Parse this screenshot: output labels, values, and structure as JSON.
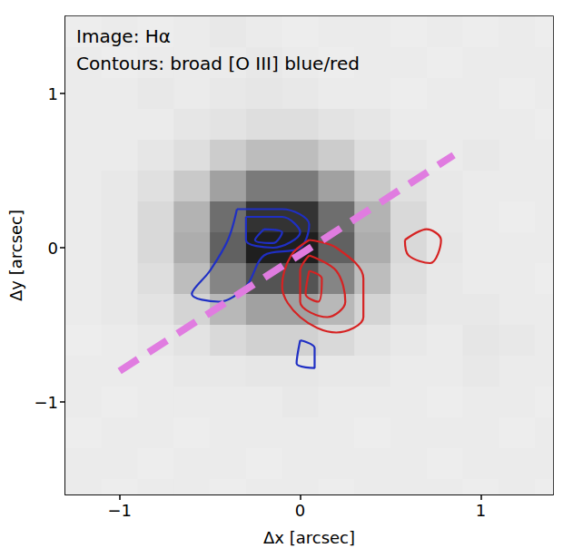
{
  "chart_data": {
    "type": "image",
    "annotations": [
      "Image: Hα",
      "Contours: broad [O III] blue/red"
    ],
    "x_label": "Δx [arcsec]",
    "y_label": "Δy [arcsec]",
    "xlim": [
      -1.3,
      1.4
    ],
    "ylim": [
      -1.6,
      1.5
    ],
    "xticks": [
      {
        "value": -1,
        "label": "−1"
      },
      0,
      1
    ],
    "yticks": [
      {
        "value": -1,
        "label": "−1"
      },
      0,
      1
    ],
    "grid": false,
    "tick_labels": true,
    "image": {
      "x": [
        -1.2,
        -1.0,
        -0.8,
        -0.6,
        -0.4,
        -0.2,
        0.0,
        0.2,
        0.4,
        0.6,
        0.8,
        1.0,
        1.2,
        1.4
      ],
      "y": [
        1.4,
        1.2,
        1.0,
        0.8,
        0.6,
        0.4,
        0.2,
        0.0,
        -0.2,
        -0.4,
        -0.6,
        -0.8,
        -1.0,
        -1.2,
        -1.4,
        -1.6
      ],
      "values": [
        [
          0.07,
          0.08,
          0.07,
          0.08,
          0.09,
          0.08,
          0.07,
          0.08,
          0.08,
          0.07,
          0.08,
          0.07,
          0.08,
          0.07
        ],
        [
          0.08,
          0.07,
          0.08,
          0.08,
          0.08,
          0.09,
          0.08,
          0.07,
          0.08,
          0.08,
          0.07,
          0.08,
          0.08,
          0.08
        ],
        [
          0.08,
          0.08,
          0.09,
          0.08,
          0.09,
          0.1,
          0.09,
          0.08,
          0.08,
          0.07,
          0.08,
          0.08,
          0.07,
          0.08
        ],
        [
          0.08,
          0.08,
          0.08,
          0.1,
          0.11,
          0.13,
          0.13,
          0.11,
          0.1,
          0.08,
          0.08,
          0.08,
          0.08,
          0.07
        ],
        [
          0.08,
          0.08,
          0.1,
          0.13,
          0.2,
          0.26,
          0.26,
          0.2,
          0.13,
          0.1,
          0.08,
          0.09,
          0.08,
          0.08
        ],
        [
          0.08,
          0.09,
          0.12,
          0.21,
          0.37,
          0.52,
          0.52,
          0.37,
          0.21,
          0.12,
          0.09,
          0.08,
          0.08,
          0.08
        ],
        [
          0.08,
          0.09,
          0.15,
          0.3,
          0.57,
          0.8,
          0.8,
          0.57,
          0.3,
          0.15,
          0.09,
          0.08,
          0.07,
          0.08
        ],
        [
          0.08,
          0.09,
          0.15,
          0.32,
          0.62,
          0.88,
          0.88,
          0.62,
          0.32,
          0.15,
          0.1,
          0.08,
          0.08,
          0.08
        ],
        [
          0.08,
          0.09,
          0.13,
          0.26,
          0.48,
          0.67,
          0.67,
          0.48,
          0.26,
          0.13,
          0.09,
          0.08,
          0.08,
          0.07
        ],
        [
          0.08,
          0.09,
          0.11,
          0.17,
          0.28,
          0.37,
          0.37,
          0.28,
          0.17,
          0.11,
          0.09,
          0.09,
          0.08,
          0.08
        ],
        [
          0.07,
          0.08,
          0.09,
          0.11,
          0.15,
          0.18,
          0.18,
          0.15,
          0.11,
          0.09,
          0.08,
          0.1,
          0.09,
          0.08
        ],
        [
          0.08,
          0.08,
          0.08,
          0.09,
          0.09,
          0.1,
          0.1,
          0.09,
          0.09,
          0.08,
          0.08,
          0.09,
          0.08,
          0.08
        ],
        [
          0.08,
          0.07,
          0.08,
          0.08,
          0.08,
          0.08,
          0.09,
          0.08,
          0.08,
          0.08,
          0.07,
          0.08,
          0.08,
          0.07
        ],
        [
          0.07,
          0.08,
          0.08,
          0.07,
          0.08,
          0.08,
          0.08,
          0.08,
          0.07,
          0.08,
          0.08,
          0.08,
          0.07,
          0.08
        ],
        [
          0.08,
          0.08,
          0.07,
          0.08,
          0.08,
          0.07,
          0.08,
          0.08,
          0.08,
          0.08,
          0.07,
          0.08,
          0.08,
          0.08
        ],
        [
          0.08,
          0.07,
          0.08,
          0.08,
          0.07,
          0.08,
          0.08,
          0.07,
          0.08,
          0.08,
          0.08,
          0.07,
          0.08,
          0.07
        ]
      ]
    },
    "contours": [
      {
        "color": "#1f2fc4",
        "paths": [
          [
            [
              -0.35,
              0.25
            ],
            [
              -0.1,
              0.25
            ],
            [
              0.05,
              0.15
            ],
            [
              0.0,
              0.0
            ],
            [
              -0.2,
              -0.05
            ],
            [
              -0.3,
              -0.25
            ],
            [
              -0.45,
              -0.35
            ],
            [
              -0.6,
              -0.3
            ],
            [
              -0.5,
              -0.15
            ],
            [
              -0.4,
              0.05
            ],
            [
              -0.35,
              0.25
            ]
          ],
          [
            [
              -0.3,
              0.2
            ],
            [
              -0.1,
              0.2
            ],
            [
              0.0,
              0.1
            ],
            [
              -0.15,
              0.0
            ],
            [
              -0.3,
              0.05
            ],
            [
              -0.3,
              0.2
            ]
          ],
          [
            [
              -0.2,
              0.12
            ],
            [
              -0.1,
              0.1
            ],
            [
              -0.15,
              0.03
            ],
            [
              -0.25,
              0.05
            ],
            [
              -0.2,
              0.12
            ]
          ],
          [
            [
              0.0,
              -0.6
            ],
            [
              0.08,
              -0.65
            ],
            [
              0.08,
              -0.78
            ],
            [
              -0.02,
              -0.75
            ],
            [
              0.0,
              -0.6
            ]
          ]
        ]
      },
      {
        "color": "#d62222",
        "paths": [
          [
            [
              0.05,
              0.05
            ],
            [
              0.2,
              0.0
            ],
            [
              0.35,
              -0.2
            ],
            [
              0.35,
              -0.45
            ],
            [
              0.2,
              -0.55
            ],
            [
              0.0,
              -0.45
            ],
            [
              -0.1,
              -0.25
            ],
            [
              -0.05,
              -0.05
            ],
            [
              0.05,
              0.05
            ]
          ],
          [
            [
              0.05,
              -0.05
            ],
            [
              0.2,
              -0.15
            ],
            [
              0.25,
              -0.35
            ],
            [
              0.15,
              -0.45
            ],
            [
              0.0,
              -0.35
            ],
            [
              0.0,
              -0.15
            ],
            [
              0.05,
              -0.05
            ]
          ],
          [
            [
              0.05,
              -0.15
            ],
            [
              0.12,
              -0.2
            ],
            [
              0.1,
              -0.35
            ],
            [
              0.03,
              -0.3
            ],
            [
              0.05,
              -0.15
            ]
          ],
          [
            [
              0.58,
              0.05
            ],
            [
              0.7,
              0.12
            ],
            [
              0.78,
              0.05
            ],
            [
              0.72,
              -0.1
            ],
            [
              0.6,
              -0.05
            ],
            [
              0.58,
              0.05
            ]
          ]
        ]
      }
    ],
    "line": {
      "color": "#e07ce0",
      "line_style": "dashed",
      "points": [
        [
          -1.0,
          -0.8
        ],
        [
          0.85,
          0.6
        ]
      ]
    }
  }
}
